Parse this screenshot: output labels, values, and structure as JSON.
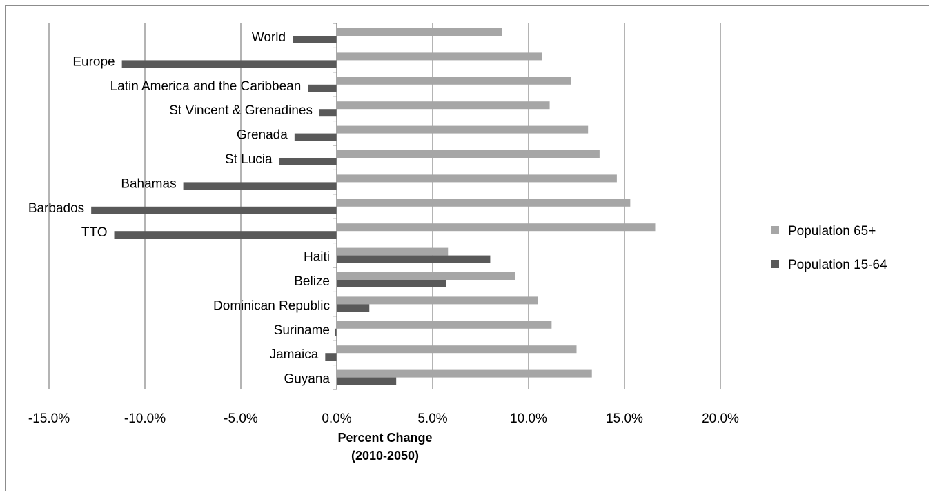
{
  "chart_data": {
    "type": "bar",
    "orientation": "horizontal",
    "categories": [
      "World",
      "Europe",
      "Latin America and the Caribbean",
      "St Vincent & Grenadines",
      "Grenada",
      "St Lucia",
      "Bahamas",
      "Barbados",
      "TTO",
      "Haiti",
      "Belize",
      "Dominican Republic",
      "Suriname",
      "Jamaica",
      "Guyana"
    ],
    "series": [
      {
        "name": "Population 65+",
        "color": "#a6a6a6",
        "values": [
          8.6,
          10.7,
          12.2,
          11.1,
          13.1,
          13.7,
          14.6,
          15.3,
          16.6,
          5.8,
          9.3,
          10.5,
          11.2,
          12.5,
          13.3
        ]
      },
      {
        "name": "Population 15-64",
        "color": "#595959",
        "values": [
          -2.3,
          -11.2,
          -1.5,
          -0.9,
          -2.2,
          -3.0,
          -8.0,
          -12.8,
          -11.6,
          8.0,
          5.7,
          1.7,
          -0.1,
          -0.6,
          3.1
        ]
      }
    ],
    "xlim": [
      -15,
      20
    ],
    "xticks": [
      "-15.0%",
      "-10.0%",
      "-5.0%",
      "0.0%",
      "5.0%",
      "10.0%",
      "15.0%",
      "20.0%"
    ],
    "xlabel": [
      "Percent Change",
      "(2010-2050)"
    ],
    "grid": true,
    "legend_position": "right"
  }
}
